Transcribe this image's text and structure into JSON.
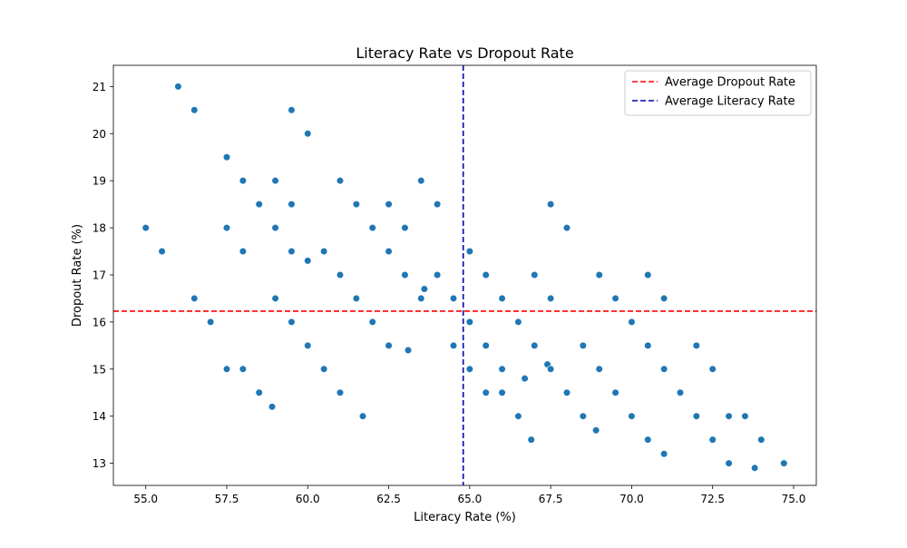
{
  "chart_data": {
    "type": "scatter",
    "title": "Literacy Rate vs Dropout Rate",
    "xlabel": "Literacy Rate (%)",
    "ylabel": "Dropout Rate (%)",
    "xlim": [
      54.0,
      75.7
    ],
    "ylim": [
      12.53,
      21.45
    ],
    "xticks": [
      55.0,
      57.5,
      60.0,
      62.5,
      65.0,
      67.5,
      70.0,
      72.5,
      75.0
    ],
    "xtick_labels": [
      "55.0",
      "57.5",
      "60.0",
      "62.5",
      "65.0",
      "67.5",
      "70.0",
      "72.5",
      "75.0"
    ],
    "yticks": [
      13,
      14,
      15,
      16,
      17,
      18,
      19,
      20,
      21
    ],
    "ytick_labels": [
      "13",
      "14",
      "15",
      "16",
      "17",
      "18",
      "19",
      "20",
      "21"
    ],
    "grid": false,
    "legend_position": "upper right",
    "reference_lines": [
      {
        "name": "Average Dropout Rate",
        "orientation": "horizontal",
        "value": 16.23,
        "color": "#ff0000",
        "style": "dashed"
      },
      {
        "name": "Average Literacy Rate",
        "orientation": "vertical",
        "value": 64.8,
        "color": "#0000bb",
        "style": "dashed"
      }
    ],
    "series": [
      {
        "color": "#1f77b4",
        "points": [
          [
            56.0,
            21.0
          ],
          [
            56.5,
            20.5
          ],
          [
            59.5,
            20.5
          ],
          [
            60.0,
            20.0
          ],
          [
            57.5,
            19.5
          ],
          [
            58.0,
            19.0
          ],
          [
            59.0,
            19.0
          ],
          [
            61.0,
            19.0
          ],
          [
            63.5,
            19.0
          ],
          [
            58.5,
            18.5
          ],
          [
            59.5,
            18.5
          ],
          [
            61.5,
            18.5
          ],
          [
            62.5,
            18.5
          ],
          [
            64.0,
            18.5
          ],
          [
            67.5,
            18.5
          ],
          [
            55.0,
            18.0
          ],
          [
            57.5,
            18.0
          ],
          [
            59.0,
            18.0
          ],
          [
            62.0,
            18.0
          ],
          [
            63.0,
            18.0
          ],
          [
            68.0,
            18.0
          ],
          [
            55.5,
            17.5
          ],
          [
            58.0,
            17.5
          ],
          [
            59.5,
            17.5
          ],
          [
            60.5,
            17.5
          ],
          [
            62.5,
            17.5
          ],
          [
            65.0,
            17.5
          ],
          [
            60.0,
            17.3
          ],
          [
            61.0,
            17.0
          ],
          [
            63.0,
            17.0
          ],
          [
            64.0,
            17.0
          ],
          [
            65.5,
            17.0
          ],
          [
            67.0,
            17.0
          ],
          [
            69.0,
            17.0
          ],
          [
            70.5,
            17.0
          ],
          [
            63.6,
            16.7
          ],
          [
            56.5,
            16.5
          ],
          [
            59.0,
            16.5
          ],
          [
            61.5,
            16.5
          ],
          [
            63.5,
            16.5
          ],
          [
            64.5,
            16.5
          ],
          [
            66.0,
            16.5
          ],
          [
            67.5,
            16.5
          ],
          [
            69.5,
            16.5
          ],
          [
            71.0,
            16.5
          ],
          [
            57.0,
            16.0
          ],
          [
            59.5,
            16.0
          ],
          [
            62.0,
            16.0
          ],
          [
            65.0,
            16.0
          ],
          [
            66.5,
            16.0
          ],
          [
            70.0,
            16.0
          ],
          [
            60.0,
            15.5
          ],
          [
            62.5,
            15.5
          ],
          [
            64.5,
            15.5
          ],
          [
            65.5,
            15.5
          ],
          [
            67.0,
            15.5
          ],
          [
            68.5,
            15.5
          ],
          [
            70.5,
            15.5
          ],
          [
            72.0,
            15.5
          ],
          [
            63.1,
            15.4
          ],
          [
            67.4,
            15.1
          ],
          [
            57.5,
            15.0
          ],
          [
            58.0,
            15.0
          ],
          [
            60.5,
            15.0
          ],
          [
            65.0,
            15.0
          ],
          [
            66.0,
            15.0
          ],
          [
            67.5,
            15.0
          ],
          [
            69.0,
            15.0
          ],
          [
            71.0,
            15.0
          ],
          [
            72.5,
            15.0
          ],
          [
            66.7,
            14.8
          ],
          [
            58.5,
            14.5
          ],
          [
            61.0,
            14.5
          ],
          [
            65.5,
            14.5
          ],
          [
            66.0,
            14.5
          ],
          [
            68.0,
            14.5
          ],
          [
            69.5,
            14.5
          ],
          [
            71.5,
            14.5
          ],
          [
            58.9,
            14.2
          ],
          [
            61.7,
            14.0
          ],
          [
            66.5,
            14.0
          ],
          [
            68.5,
            14.0
          ],
          [
            70.0,
            14.0
          ],
          [
            72.0,
            14.0
          ],
          [
            73.0,
            14.0
          ],
          [
            73.5,
            14.0
          ],
          [
            68.9,
            13.7
          ],
          [
            66.9,
            13.5
          ],
          [
            70.5,
            13.5
          ],
          [
            72.5,
            13.5
          ],
          [
            74.0,
            13.5
          ],
          [
            71.0,
            13.2
          ],
          [
            73.0,
            13.0
          ],
          [
            74.7,
            13.0
          ],
          [
            73.8,
            12.9
          ]
        ]
      }
    ]
  }
}
